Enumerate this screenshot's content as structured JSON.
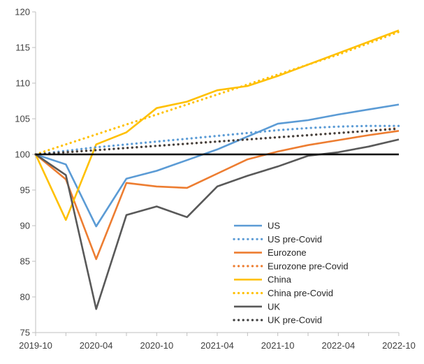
{
  "chart_data": {
    "type": "line",
    "x": [
      "2019-10",
      "2020-01",
      "2020-04",
      "2020-07",
      "2020-10",
      "2021-01",
      "2021-04",
      "2021-07",
      "2021-10",
      "2022-01",
      "2022-04",
      "2022-07",
      "2022-10"
    ],
    "x_tick_labels": [
      "2019-10",
      "2020-04",
      "2020-10",
      "2021-04",
      "2021-10",
      "2022-04",
      "2022-10"
    ],
    "y_ticks": [
      75,
      80,
      85,
      90,
      95,
      100,
      105,
      110,
      115,
      120
    ],
    "ylim": [
      75,
      120
    ],
    "baseline": 100,
    "grid": false,
    "legend_position": "bottom-right",
    "series": [
      {
        "name": "US",
        "color": "#5B9BD5",
        "dashed": false,
        "values": [
          100,
          98.6,
          89.9,
          96.6,
          97.7,
          99.2,
          100.7,
          102.5,
          104.3,
          104.8,
          105.6,
          106.3,
          107.0
        ]
      },
      {
        "name": "US pre-Covid",
        "color": "#5B9BD5",
        "dashed": true,
        "values": [
          100,
          100.5,
          101.0,
          101.4,
          101.8,
          102.2,
          102.6,
          103.0,
          103.4,
          103.7,
          103.9,
          104.0,
          104.0
        ]
      },
      {
        "name": "Eurozone",
        "color": "#ED7D31",
        "dashed": false,
        "values": [
          100,
          96.5,
          85.3,
          96.0,
          95.5,
          95.3,
          97.3,
          99.3,
          100.4,
          101.3,
          102.0,
          102.7,
          103.3
        ]
      },
      {
        "name": "Eurozone pre-Covid",
        "color": "#ED7D31",
        "dashed": true,
        "values": [
          100,
          100.3,
          100.6,
          100.9,
          101.2,
          101.5,
          101.8,
          102.1,
          102.4,
          102.7,
          103.0,
          103.3,
          103.7
        ]
      },
      {
        "name": "China",
        "color": "#FFC000",
        "dashed": false,
        "values": [
          100,
          90.8,
          101.4,
          103.1,
          106.5,
          107.4,
          109.0,
          109.6,
          111.0,
          112.6,
          114.2,
          115.8,
          117.4
        ]
      },
      {
        "name": "China pre-Covid",
        "color": "#FFC000",
        "dashed": true,
        "values": [
          100,
          101.4,
          102.8,
          104.2,
          105.6,
          107.0,
          108.4,
          109.8,
          111.2,
          112.6,
          114.0,
          115.6,
          117.2
        ]
      },
      {
        "name": "UK",
        "color": "#595959",
        "dashed": false,
        "values": [
          100,
          97.1,
          78.3,
          91.5,
          92.7,
          91.2,
          95.5,
          97.0,
          98.3,
          99.8,
          100.3,
          101.1,
          102.1
        ]
      },
      {
        "name": "UK pre-Covid",
        "color": "#404040",
        "dashed": true,
        "values": [
          100,
          100.3,
          100.6,
          100.9,
          101.2,
          101.5,
          101.8,
          102.1,
          102.4,
          102.7,
          103.0,
          103.3,
          103.6
        ]
      }
    ]
  }
}
